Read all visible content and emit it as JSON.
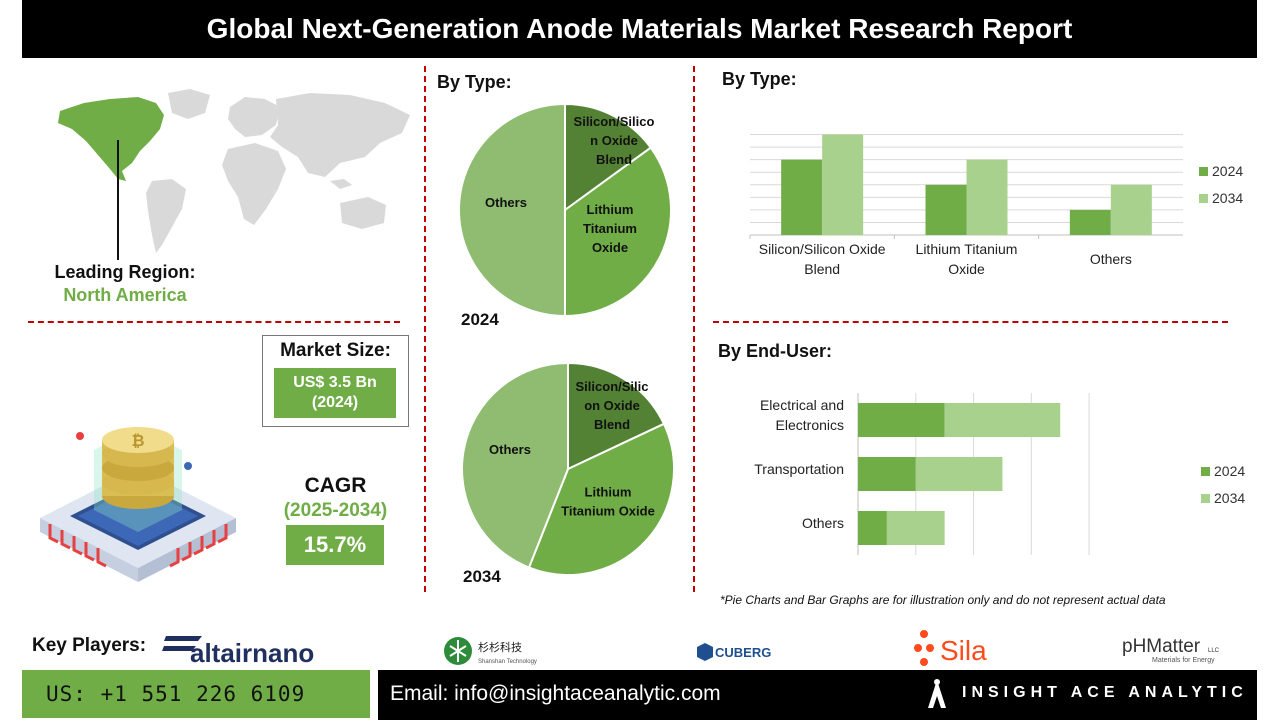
{
  "title": "Global Next-Generation Anode Materials Market Research Report",
  "leading_region": {
    "label": "Leading Region:",
    "value": "North America"
  },
  "market_size": {
    "label": "Market Size:",
    "value_line1": "US$ 3.5 Bn",
    "value_line2": "(2024)"
  },
  "cagr": {
    "label": "CAGR",
    "period": "(2025-2034)",
    "value": "15.7%"
  },
  "sections": {
    "by_type_pie": "By Type:",
    "by_type_bar": "By Type:",
    "by_end_user": "By End-User:"
  },
  "note": "*Pie Charts and Bar Graphs are for illustration only and do not represent actual data",
  "key_players": {
    "label": "Key Players:",
    "logos": {
      "altair": "altairnano",
      "shanshan_cn": "杉杉科技",
      "shanshan_en": "Shanshan Technology",
      "cuberg": "CUBERG",
      "sila": "Sila",
      "phmatter": "pHMatter",
      "phmatter_llc": "LLC",
      "phmatter_tag": "Materials for Energy"
    }
  },
  "footer": {
    "phone": "US: +1 551 226 6109",
    "email": "Email: info@insightaceanalytic.com",
    "brand": "INSIGHT ACE ANALYTIC"
  },
  "colors": {
    "accent_green": "#70ad47",
    "dark_green": "#548235",
    "mid_green": "#70ad47",
    "light_green": "#a9d18e",
    "pie_light": "#8fbc71",
    "dash_red": "#c00000"
  },
  "chart_data": [
    {
      "type": "pie",
      "title": "By Type:",
      "year_label": "2024",
      "slices": [
        {
          "label": "Silicon/Silicon Oxide Blend",
          "value": 15,
          "color": "#548235"
        },
        {
          "label": "Lithium Titanium Oxide",
          "value": 35,
          "color": "#70ad47"
        },
        {
          "label": "Others",
          "value": 50,
          "color": "#8fbc71"
        }
      ],
      "slice_text": {
        "silicon": [
          "Silicon/Silico",
          "n Oxide",
          "Blend"
        ],
        "lithium": [
          "Lithium",
          "Titanium",
          "Oxide"
        ],
        "others": [
          "Others"
        ]
      }
    },
    {
      "type": "pie",
      "title": "By Type:",
      "year_label": "2034",
      "slices": [
        {
          "label": "Silicon/Silicon Oxide Blend",
          "value": 18,
          "color": "#548235"
        },
        {
          "label": "Lithium Titanium Oxide",
          "value": 38,
          "color": "#70ad47"
        },
        {
          "label": "Others",
          "value": 44,
          "color": "#8fbc71"
        }
      ],
      "slice_text": {
        "silicon": [
          "Silicon/Silic",
          "on Oxide",
          "Blend"
        ],
        "lithium": [
          "Lithium",
          "Titanium Oxide"
        ],
        "others": [
          "Others"
        ]
      }
    },
    {
      "type": "bar",
      "orientation": "vertical",
      "title": "By Type:",
      "categories": [
        "Silicon/Silicon Oxide Blend",
        "Lithium Titanium Oxide",
        "Others"
      ],
      "category_lines": [
        [
          "Silicon/Silicon Oxide",
          "Blend"
        ],
        [
          "Lithium Titanium",
          "Oxide"
        ],
        [
          "Others"
        ]
      ],
      "series": [
        {
          "name": "2024",
          "values": [
            3,
            2,
            1
          ],
          "color": "#70ad47"
        },
        {
          "name": "2034",
          "values": [
            4,
            3,
            2
          ],
          "color": "#a9d18e"
        }
      ],
      "ylim": [
        0,
        4.5
      ],
      "grid": true,
      "legend": "right"
    },
    {
      "type": "bar",
      "orientation": "horizontal",
      "stacked": true,
      "title": "By End-User:",
      "categories": [
        "Electrical and Electronics",
        "Transportation",
        "Others"
      ],
      "category_lines": [
        [
          "Electrical and",
          "Electronics"
        ],
        [
          "Transportation"
        ],
        [
          "Others"
        ]
      ],
      "series": [
        {
          "name": "2024",
          "values": [
            1.5,
            1.0,
            0.5
          ],
          "color": "#70ad47"
        },
        {
          "name": "2034",
          "values": [
            2.0,
            1.5,
            1.0
          ],
          "color": "#a9d18e"
        }
      ],
      "xlim": [
        0,
        4.5
      ],
      "grid": true,
      "legend": "right"
    }
  ]
}
